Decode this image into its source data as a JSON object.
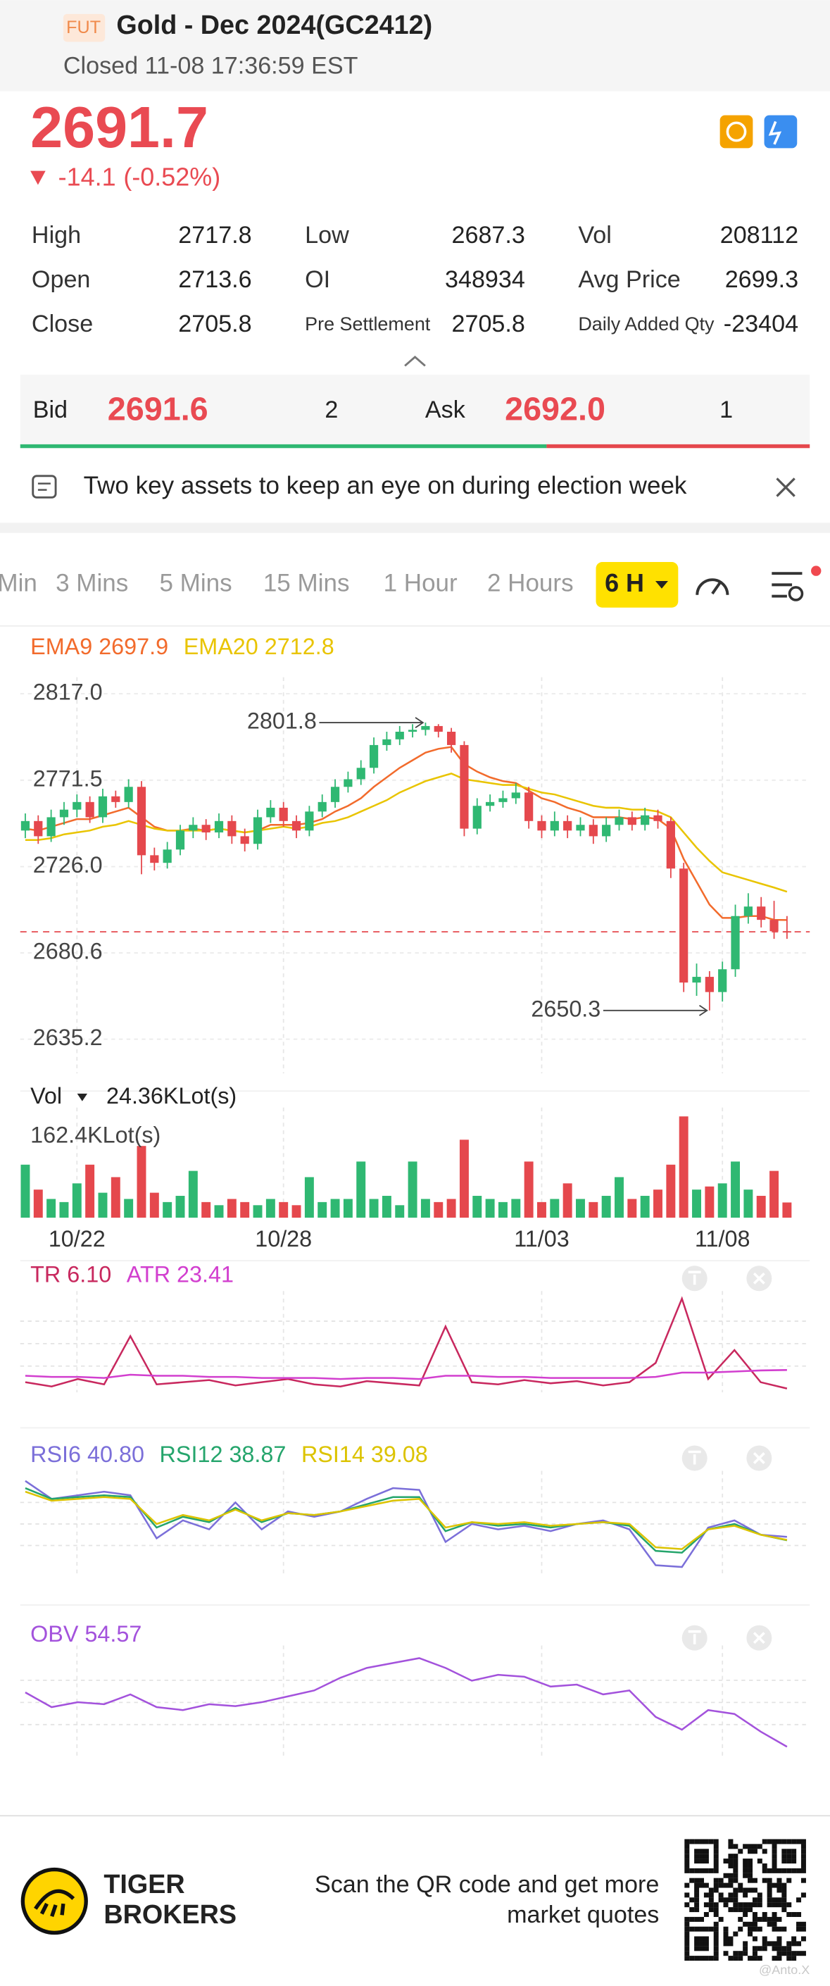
{
  "header": {
    "badge": "FUT",
    "title": "Gold - Dec 2024(GC2412)",
    "status": "Closed 11-08 17:36:59 EST"
  },
  "quote": {
    "price": 2691.7,
    "change": -14.1,
    "change_percent": "(-0.52%)"
  },
  "stats": [
    [
      {
        "label": "High",
        "value": 2717.8
      },
      {
        "label": "Low",
        "value": 2687.3
      },
      {
        "label": "Vol",
        "value": 208112
      }
    ],
    [
      {
        "label": "Open",
        "value": 2713.6
      },
      {
        "label": "OI",
        "value": 348934
      },
      {
        "label": "Avg Price",
        "value": 2699.3
      }
    ],
    [
      {
        "label": "Close",
        "value": 2705.8
      },
      {
        "label": "Pre Settlement",
        "value": 2705.8
      },
      {
        "label": "Daily Added Qty",
        "value": -23404
      }
    ]
  ],
  "order_book": {
    "bid_label": "Bid",
    "bid": 2691.6,
    "bid_size": 2,
    "ask_label": "Ask",
    "ask": "2692.0",
    "ask_size": 1
  },
  "news": {
    "text": "Two key assets to keep an eye on during election week"
  },
  "timeframes": {
    "tabs": [
      "Min",
      "3 Mins",
      "5 Mins",
      "15 Mins",
      "1 Hour",
      "2 Hours"
    ],
    "selected": "6 H"
  },
  "chart_data": [
    {
      "type": "candlestick",
      "up_color": "#2fb872",
      "down_color": "#e5484d",
      "grid": true,
      "categories": [
        null,
        null,
        null,
        null,
        "10/22",
        null,
        null,
        null,
        null,
        null,
        null,
        null,
        null,
        null,
        null,
        null,
        null,
        null,
        null,
        null,
        "10/28",
        null,
        null,
        null,
        null,
        null,
        null,
        null,
        null,
        null,
        null,
        null,
        null,
        null,
        null,
        null,
        null,
        null,
        null,
        null,
        "11/03",
        null,
        null,
        null,
        null,
        null,
        null,
        null,
        null,
        null,
        null,
        null,
        null,
        null,
        "11/08",
        null,
        null,
        null,
        null,
        null
      ],
      "open": [
        2745,
        2750,
        2742,
        2752,
        2756,
        2760,
        2752,
        2763,
        2760,
        2768,
        2732,
        2728,
        2735,
        2745,
        2748,
        2744,
        2750,
        2742,
        2738,
        2752,
        2757,
        2750,
        2745,
        2755,
        2760,
        2768,
        2772,
        2778,
        2790,
        2793,
        2797,
        2798,
        2800,
        2797,
        2790,
        2746,
        2758,
        2760,
        2762,
        2765,
        2750,
        2745,
        2750,
        2745,
        2748,
        2742,
        2748,
        2752,
        2748,
        2753,
        2750,
        2725,
        2665,
        2668,
        2660,
        2672,
        2700,
        2705,
        2698,
        2692
      ],
      "high": [
        2754,
        2753,
        2756,
        2760,
        2764,
        2763,
        2767,
        2766,
        2772,
        2771,
        2736,
        2739,
        2748,
        2752,
        2751,
        2754,
        2753,
        2746,
        2756,
        2761,
        2760,
        2753,
        2758,
        2764,
        2772,
        2776,
        2782,
        2794,
        2797,
        2800,
        2801,
        2801.8,
        2801,
        2799,
        2792,
        2762,
        2764,
        2766,
        2770,
        2768,
        2753,
        2755,
        2753,
        2752,
        2751,
        2752,
        2756,
        2755,
        2757,
        2756,
        2752,
        2728,
        2675,
        2671,
        2676,
        2706,
        2712,
        2710,
        2708,
        2700
      ],
      "low": [
        2741,
        2738,
        2739,
        2748,
        2752,
        2749,
        2749,
        2757,
        2757,
        2722,
        2724,
        2725,
        2732,
        2741,
        2740,
        2741,
        2738,
        2734,
        2735,
        2749,
        2747,
        2741,
        2742,
        2752,
        2757,
        2765,
        2769,
        2775,
        2787,
        2790,
        2794,
        2795,
        2794,
        2786,
        2742,
        2743,
        2755,
        2757,
        2759,
        2746,
        2741,
        2742,
        2741,
        2742,
        2738,
        2739,
        2745,
        2745,
        2745,
        2746,
        2720,
        2660,
        2658,
        2650.3,
        2655,
        2668,
        2696,
        2694,
        2688,
        2688
      ],
      "close": [
        2750,
        2742,
        2752,
        2756,
        2760,
        2752,
        2763,
        2760,
        2768,
        2732,
        2728,
        2735,
        2745,
        2748,
        2744,
        2750,
        2742,
        2738,
        2752,
        2757,
        2750,
        2745,
        2755,
        2760,
        2768,
        2772,
        2778,
        2790,
        2793,
        2797,
        2798,
        2800,
        2797,
        2790,
        2746,
        2758,
        2760,
        2762,
        2765,
        2750,
        2745,
        2750,
        2745,
        2748,
        2742,
        2748,
        2752,
        2748,
        2753,
        2750,
        2725,
        2665,
        2668,
        2660,
        2672,
        2700,
        2705,
        2698,
        2692,
        2691.7
      ],
      "series": [
        {
          "name": "EMA9",
          "color": "#f26b2c",
          "values": [
            2746,
            2745,
            2747,
            2749,
            2751,
            2751,
            2753,
            2755,
            2757,
            2752,
            2747,
            2745,
            2745,
            2746,
            2745,
            2746,
            2745,
            2744,
            2745,
            2748,
            2748,
            2748,
            2749,
            2751,
            2755,
            2758,
            2762,
            2768,
            2773,
            2778,
            2782,
            2786,
            2788,
            2789,
            2780,
            2776,
            2773,
            2771,
            2770,
            2766,
            2762,
            2760,
            2757,
            2755,
            2752,
            2752,
            2752,
            2751,
            2752,
            2751,
            2746,
            2730,
            2718,
            2706,
            2699,
            2699,
            2700,
            2700,
            2698,
            2697.9
          ]
        },
        {
          "name": "EMA20",
          "color": "#e9c400",
          "values": [
            2740,
            2740,
            2741,
            2743,
            2744,
            2745,
            2747,
            2748,
            2750,
            2748,
            2746,
            2745,
            2745,
            2745,
            2745,
            2746,
            2745,
            2744,
            2745,
            2746,
            2747,
            2746,
            2747,
            2749,
            2750,
            2752,
            2755,
            2758,
            2761,
            2765,
            2768,
            2771,
            2773,
            2775,
            2772,
            2771,
            2770,
            2769,
            2769,
            2767,
            2765,
            2764,
            2762,
            2760,
            2758,
            2757,
            2757,
            2756,
            2756,
            2755,
            2752,
            2744,
            2736,
            2729,
            2723,
            2721,
            2719,
            2717,
            2715,
            2712.8
          ]
        }
      ],
      "ylim": [
        2617.2,
        2825.7
      ],
      "yticks": [
        {
          "value": 2817,
          "label": "2817.0"
        },
        2771.5,
        {
          "value": 2726,
          "label": "2726.0"
        },
        2680.6,
        2635.2
      ]
    },
    {
      "type": "bar",
      "title": "Vol",
      "values": [
        85,
        45,
        30,
        25,
        55,
        85,
        40,
        65,
        30,
        115,
        40,
        25,
        35,
        75,
        25,
        20,
        30,
        25,
        20,
        30,
        25,
        20,
        65,
        25,
        30,
        30,
        90,
        30,
        35,
        20,
        90,
        30,
        25,
        30,
        125,
        35,
        30,
        25,
        30,
        90,
        25,
        30,
        55,
        30,
        25,
        35,
        65,
        30,
        35,
        45,
        85,
        162.4,
        45,
        50,
        55,
        90,
        45,
        35,
        75,
        24.36
      ],
      "value_labels": [
        null,
        null,
        null,
        null,
        null,
        null,
        null,
        null,
        null,
        null,
        null,
        null,
        null,
        null,
        null,
        null,
        null,
        null,
        null,
        null,
        null,
        null,
        null,
        null,
        null,
        null,
        null,
        null,
        null,
        null,
        null,
        null,
        null,
        null,
        null,
        null,
        null,
        null,
        null,
        null,
        null,
        null,
        null,
        null,
        null,
        null,
        null,
        null,
        null,
        null,
        null,
        null,
        null,
        null,
        null,
        null,
        null,
        null,
        null,
        "24.36KLot(s)"
      ],
      "ylim": [
        0,
        162.4
      ],
      "yticks": [
        {
          "value": 162.4,
          "label": "162.4KLot(s)"
        }
      ]
    },
    {
      "type": "line",
      "series": [
        {
          "name": "TR",
          "color": "#c8285e",
          "values": [
            12,
            8,
            15,
            10,
            55,
            10,
            12,
            14,
            9,
            12,
            15,
            10,
            8,
            13,
            11,
            9,
            64,
            12,
            10,
            14,
            11,
            13,
            9,
            12,
            30,
            90,
            15,
            42,
            12,
            6.1
          ],
          "value_labels": [
            null,
            null,
            null,
            null,
            null,
            null,
            null,
            null,
            null,
            null,
            null,
            null,
            null,
            null,
            null,
            null,
            null,
            null,
            null,
            null,
            null,
            null,
            null,
            null,
            null,
            null,
            null,
            null,
            null,
            "6.10"
          ]
        },
        {
          "name": "ATR",
          "color": "#d23fcf",
          "values": [
            18,
            17,
            17,
            16,
            19,
            18,
            18,
            17,
            17,
            16,
            16,
            16,
            15,
            16,
            16,
            15,
            18,
            18,
            17,
            17,
            16,
            16,
            16,
            16,
            17,
            21,
            21,
            22,
            23,
            23.41
          ]
        }
      ]
    },
    {
      "type": "line",
      "series": [
        {
          "name": "RSI6",
          "color": "#7b6fd9",
          "values": [
            72,
            62,
            64,
            66,
            64,
            40,
            50,
            45,
            60,
            45,
            55,
            52,
            55,
            62,
            68,
            67,
            38,
            48,
            45,
            47,
            44,
            48,
            50,
            45,
            25,
            24,
            46,
            50,
            42,
            40.8
          ],
          "value_labels": [
            null,
            null,
            null,
            null,
            null,
            null,
            null,
            null,
            null,
            null,
            null,
            null,
            null,
            null,
            null,
            null,
            null,
            null,
            null,
            null,
            null,
            null,
            null,
            null,
            null,
            null,
            null,
            null,
            null,
            "40.80"
          ]
        },
        {
          "name": "RSI12",
          "color": "#25a56c",
          "values": [
            68,
            62,
            63,
            64,
            63,
            46,
            52,
            49,
            57,
            49,
            54,
            53,
            55,
            59,
            63,
            63,
            44,
            49,
            47,
            48,
            46,
            48,
            49,
            47,
            33,
            32,
            45,
            48,
            42,
            38.87
          ]
        },
        {
          "name": "RSI14",
          "color": "#dcc300",
          "values": [
            66,
            61,
            62,
            63,
            62,
            48,
            53,
            50,
            56,
            50,
            54,
            53,
            55,
            58,
            61,
            62,
            46,
            49,
            48,
            49,
            47,
            48,
            49,
            48,
            35,
            34,
            45,
            47,
            42,
            39.08
          ]
        }
      ]
    },
    {
      "type": "line",
      "series": [
        {
          "name": "OBV",
          "color": "#a352dc",
          "values": [
            110,
            95,
            100,
            98,
            108,
            95,
            92,
            98,
            96,
            100,
            106,
            112,
            125,
            135,
            140,
            145,
            135,
            122,
            128,
            126,
            116,
            118,
            108,
            112,
            85,
            72,
            92,
            88,
            70,
            54.57
          ]
        }
      ]
    }
  ],
  "footer": {
    "brand": [
      "TIGER",
      "BROKERS"
    ],
    "cta": [
      "Scan the QR code and get more",
      "market quotes"
    ],
    "watermark": "@Anto.X"
  }
}
